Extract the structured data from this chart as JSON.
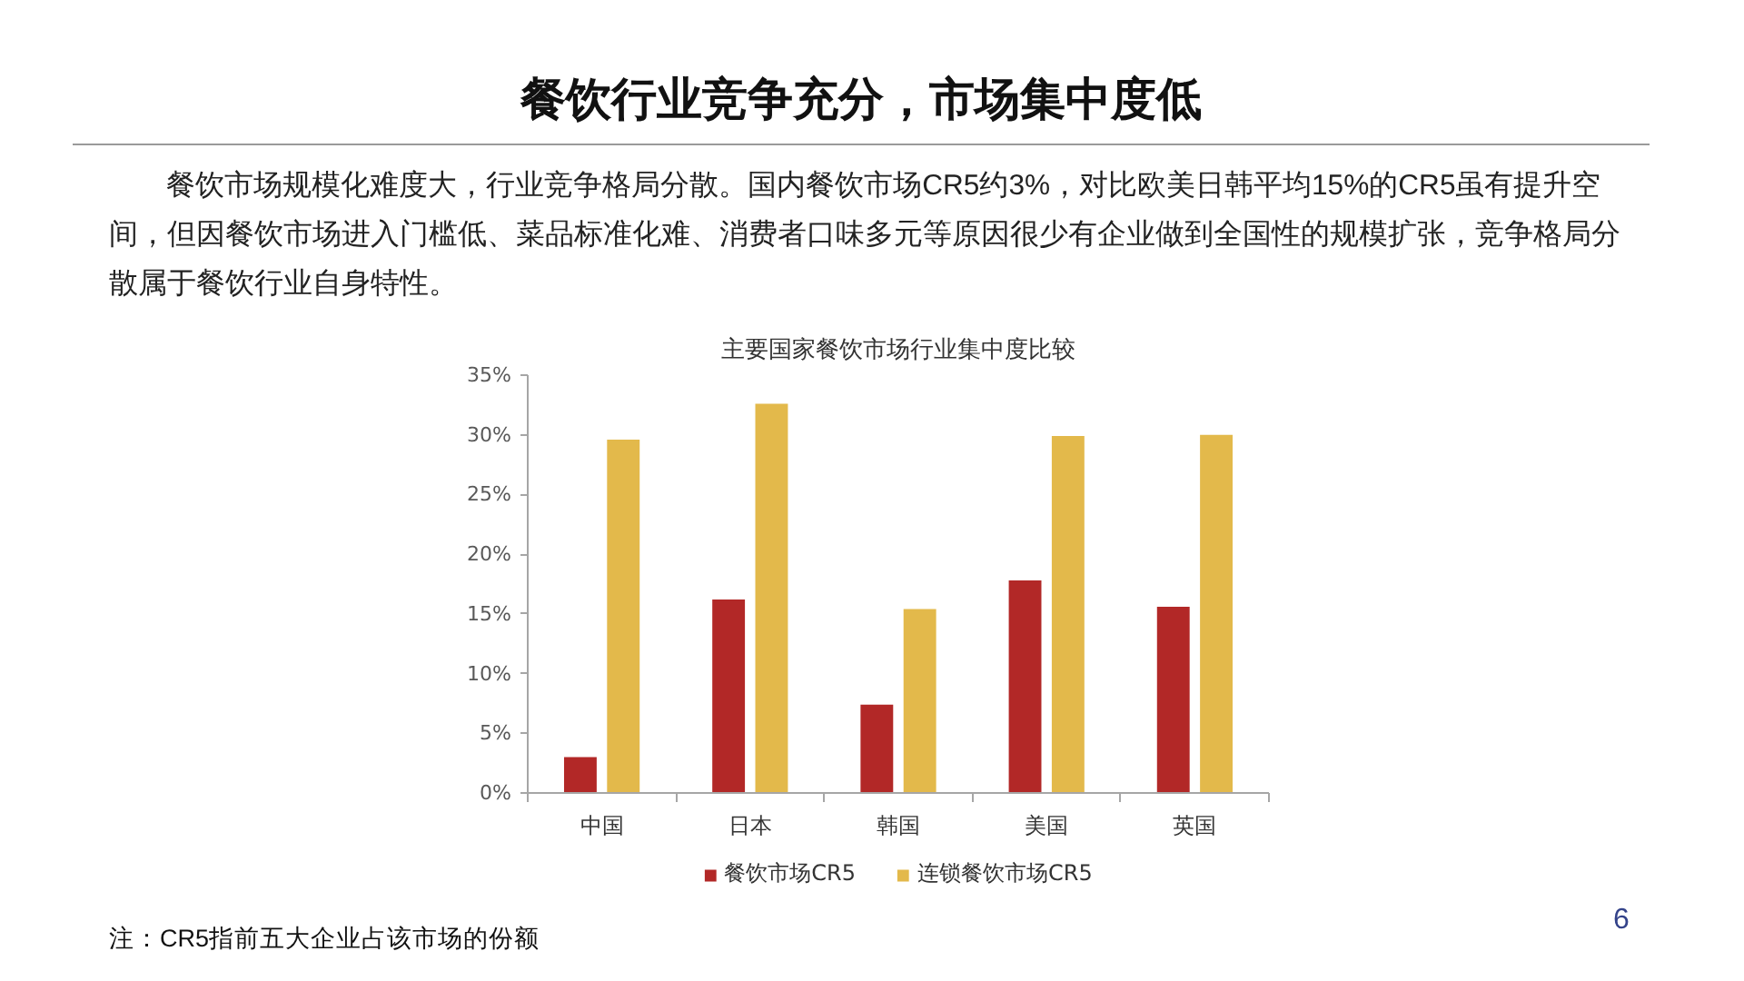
{
  "chart_data": {
    "type": "bar",
    "title": "餐饮行业竞争充分，市场集中度低",
    "subtitle": "餐饮市场规模化难度大，行业竞争格局分散。国内餐饮市场CR5约3%，对比欧美日韩平均15%的CR5虽有提升空间，但因餐饮市场进入门槛低、菜品标准化难、消费者口味多元等原因很少有企业做到全国性的规模扩张，竞争格局分散属于餐饮行业自身特性。",
    "annotations": [
      "主要国家餐饮市场行业集中度比较",
      "注：CR5指前五大企业占该市场的份额",
      "6"
    ],
    "categories": [
      "中国",
      "日本",
      "韩国",
      "美国",
      "英国"
    ],
    "series": [
      {
        "name": "餐饮市场CR5",
        "color": "#b22827",
        "values": [
          3.0,
          16.2,
          7.4,
          17.8,
          15.6
        ]
      },
      {
        "name": "连锁餐饮市场CR5",
        "color": "#e3b94b",
        "values": [
          29.6,
          32.6,
          15.4,
          29.9,
          30.0
        ]
      }
    ],
    "ylim": [
      0,
      35
    ],
    "yticks": [
      {
        "value": 0,
        "label": "0%"
      },
      {
        "value": 5,
        "label": "5%"
      },
      {
        "value": 10,
        "label": "10%"
      },
      {
        "value": 15,
        "label": "15%"
      },
      {
        "value": 20,
        "label": "20%"
      },
      {
        "value": 25,
        "label": "25%"
      },
      {
        "value": 30,
        "label": "30%"
      },
      {
        "value": 35,
        "label": "35%"
      }
    ],
    "legend": "bottom"
  }
}
